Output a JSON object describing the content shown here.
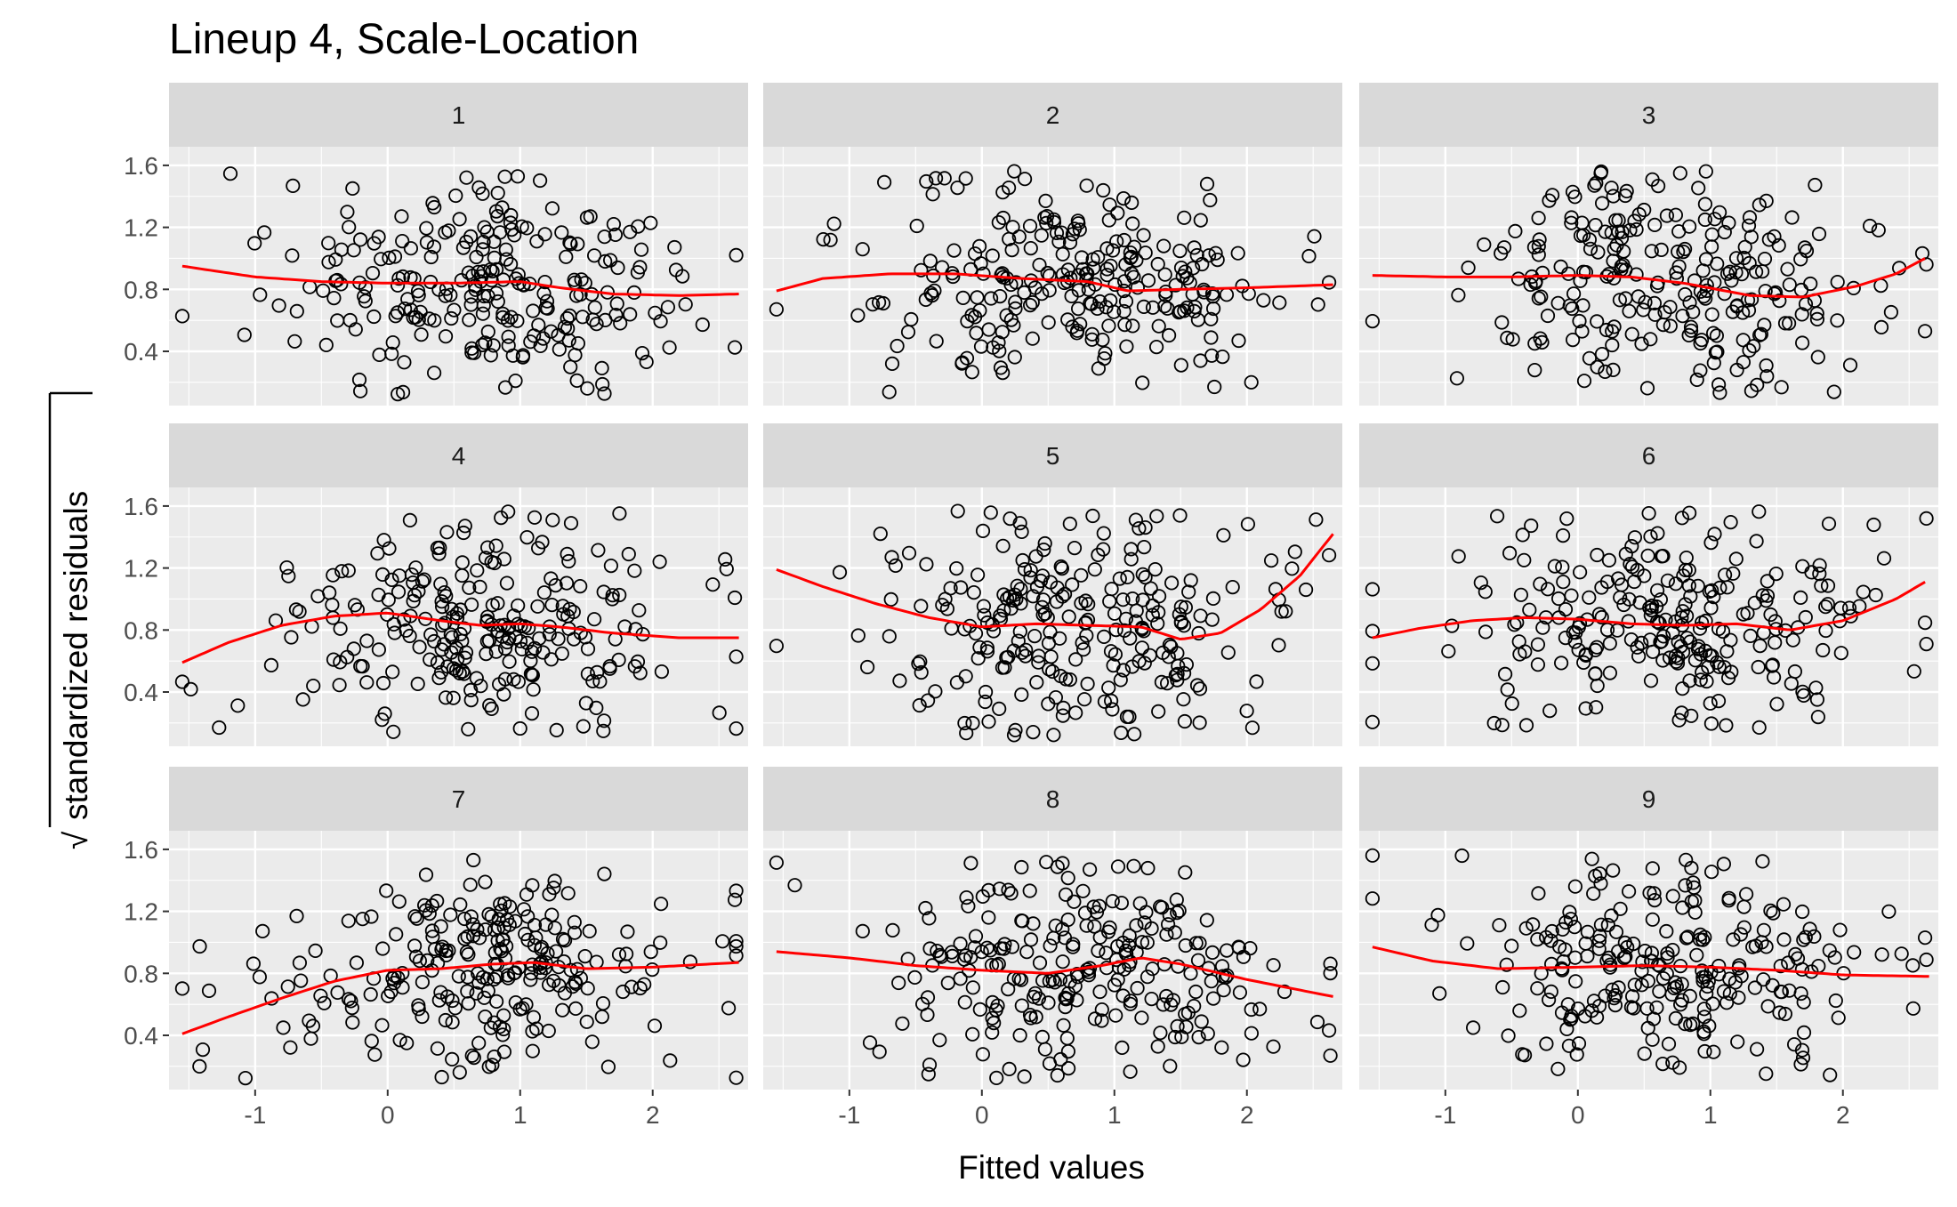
{
  "chart_data": {
    "type": "scatter",
    "title": "Lineup 4, Scale-Location",
    "xlabel": "Fitted values",
    "ylabel": "standardized residuals",
    "ylabel_prefix": "√",
    "facet_layout": [
      3,
      3
    ],
    "xlim": [
      -1.65,
      2.72
    ],
    "ylim": [
      0.05,
      1.72
    ],
    "xticks": [
      -1,
      0,
      1,
      2
    ],
    "yticks": [
      0.4,
      0.8,
      1.2,
      1.6
    ],
    "grid": true,
    "point_style": "open-circle",
    "point_color": "#000000",
    "smooth_color": "#ff0000",
    "panel_background": "#ebebeb",
    "strip_background": "#d9d9d9",
    "panels": [
      {
        "label": "1",
        "smooth": [
          [
            -1.55,
            0.95
          ],
          [
            -1,
            0.88
          ],
          [
            -0.5,
            0.85
          ],
          [
            0,
            0.84
          ],
          [
            0.5,
            0.84
          ],
          [
            1,
            0.85
          ],
          [
            1.3,
            0.81
          ],
          [
            1.7,
            0.77
          ],
          [
            2.2,
            0.76
          ],
          [
            2.65,
            0.77
          ]
        ]
      },
      {
        "label": "2",
        "smooth": [
          [
            -1.55,
            0.79
          ],
          [
            -1.2,
            0.87
          ],
          [
            -0.7,
            0.9
          ],
          [
            -0.2,
            0.9
          ],
          [
            0.3,
            0.87
          ],
          [
            0.8,
            0.85
          ],
          [
            1.1,
            0.79
          ],
          [
            1.5,
            0.8
          ],
          [
            2,
            0.81
          ],
          [
            2.65,
            0.83
          ]
        ]
      },
      {
        "label": "3",
        "smooth": [
          [
            -1.55,
            0.89
          ],
          [
            -1,
            0.88
          ],
          [
            -0.5,
            0.88
          ],
          [
            0,
            0.89
          ],
          [
            0.4,
            0.88
          ],
          [
            0.8,
            0.84
          ],
          [
            1.3,
            0.76
          ],
          [
            1.7,
            0.75
          ],
          [
            2.1,
            0.82
          ],
          [
            2.4,
            0.9
          ],
          [
            2.62,
            1.0
          ]
        ]
      },
      {
        "label": "4",
        "smooth": [
          [
            -1.55,
            0.59
          ],
          [
            -1.2,
            0.72
          ],
          [
            -0.8,
            0.83
          ],
          [
            -0.4,
            0.89
          ],
          [
            0,
            0.91
          ],
          [
            0.4,
            0.86
          ],
          [
            0.7,
            0.83
          ],
          [
            1.0,
            0.84
          ],
          [
            1.3,
            0.82
          ],
          [
            1.7,
            0.78
          ],
          [
            2.2,
            0.75
          ],
          [
            2.65,
            0.75
          ]
        ]
      },
      {
        "label": "5",
        "smooth": [
          [
            -1.55,
            1.19
          ],
          [
            -1.2,
            1.08
          ],
          [
            -0.8,
            0.97
          ],
          [
            -0.4,
            0.88
          ],
          [
            0,
            0.82
          ],
          [
            0.4,
            0.84
          ],
          [
            0.8,
            0.83
          ],
          [
            1.2,
            0.82
          ],
          [
            1.5,
            0.74
          ],
          [
            1.8,
            0.78
          ],
          [
            2.1,
            0.93
          ],
          [
            2.4,
            1.15
          ],
          [
            2.65,
            1.42
          ]
        ]
      },
      {
        "label": "6",
        "smooth": [
          [
            -1.55,
            0.75
          ],
          [
            -1.2,
            0.81
          ],
          [
            -0.8,
            0.86
          ],
          [
            -0.4,
            0.88
          ],
          [
            0,
            0.87
          ],
          [
            0.4,
            0.84
          ],
          [
            0.8,
            0.83
          ],
          [
            1.2,
            0.84
          ],
          [
            1.6,
            0.8
          ],
          [
            2.0,
            0.86
          ],
          [
            2.4,
            1.0
          ],
          [
            2.62,
            1.11
          ]
        ]
      },
      {
        "label": "7",
        "smooth": [
          [
            -1.55,
            0.41
          ],
          [
            -1.2,
            0.52
          ],
          [
            -0.8,
            0.64
          ],
          [
            -0.4,
            0.75
          ],
          [
            0,
            0.82
          ],
          [
            0.4,
            0.83
          ],
          [
            0.8,
            0.86
          ],
          [
            1.1,
            0.87
          ],
          [
            1.5,
            0.83
          ],
          [
            2.0,
            0.84
          ],
          [
            2.65,
            0.87
          ]
        ]
      },
      {
        "label": "8",
        "smooth": [
          [
            -1.55,
            0.94
          ],
          [
            -1,
            0.9
          ],
          [
            -0.5,
            0.85
          ],
          [
            0,
            0.82
          ],
          [
            0.5,
            0.8
          ],
          [
            0.9,
            0.85
          ],
          [
            1.2,
            0.9
          ],
          [
            1.5,
            0.86
          ],
          [
            2.0,
            0.76
          ],
          [
            2.65,
            0.65
          ]
        ]
      },
      {
        "label": "9",
        "smooth": [
          [
            -1.55,
            0.97
          ],
          [
            -1.1,
            0.88
          ],
          [
            -0.6,
            0.83
          ],
          [
            0,
            0.84
          ],
          [
            0.5,
            0.85
          ],
          [
            1.0,
            0.84
          ],
          [
            1.5,
            0.82
          ],
          [
            2.0,
            0.79
          ],
          [
            2.65,
            0.78
          ]
        ]
      }
    ]
  }
}
